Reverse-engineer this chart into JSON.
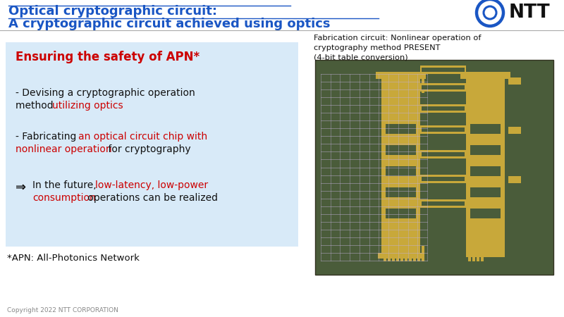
{
  "bg_color": "#ffffff",
  "title_line1": "Optical cryptographic circuit:",
  "title_line2": "A cryptographic circuit achieved using optics",
  "title_color": "#1a56c4",
  "ntt_color": "#1a56c4",
  "fab_caption_line1": "Fabrication circuit: Nonlinear operation of",
  "fab_caption_line2": "cryptography method PRESENT",
  "fab_caption_line3": "(4-bit table conversion)",
  "box_bg": "#d8eaf8",
  "box_heading": "Ensuring the safety of APN*",
  "box_heading_color": "#cc0000",
  "footnote": "*APN: All-Photonics Network",
  "copyright": "Copyright 2022 NTT CORPORATION",
  "red_color": "#cc0000",
  "black_color": "#111111",
  "chip_bg": "#4a5c3a",
  "chip_bg2": "#5a6e48",
  "gold": "#c8a83a",
  "gold_light": "#d4ba5a",
  "wire_color": "#c0b0d8"
}
